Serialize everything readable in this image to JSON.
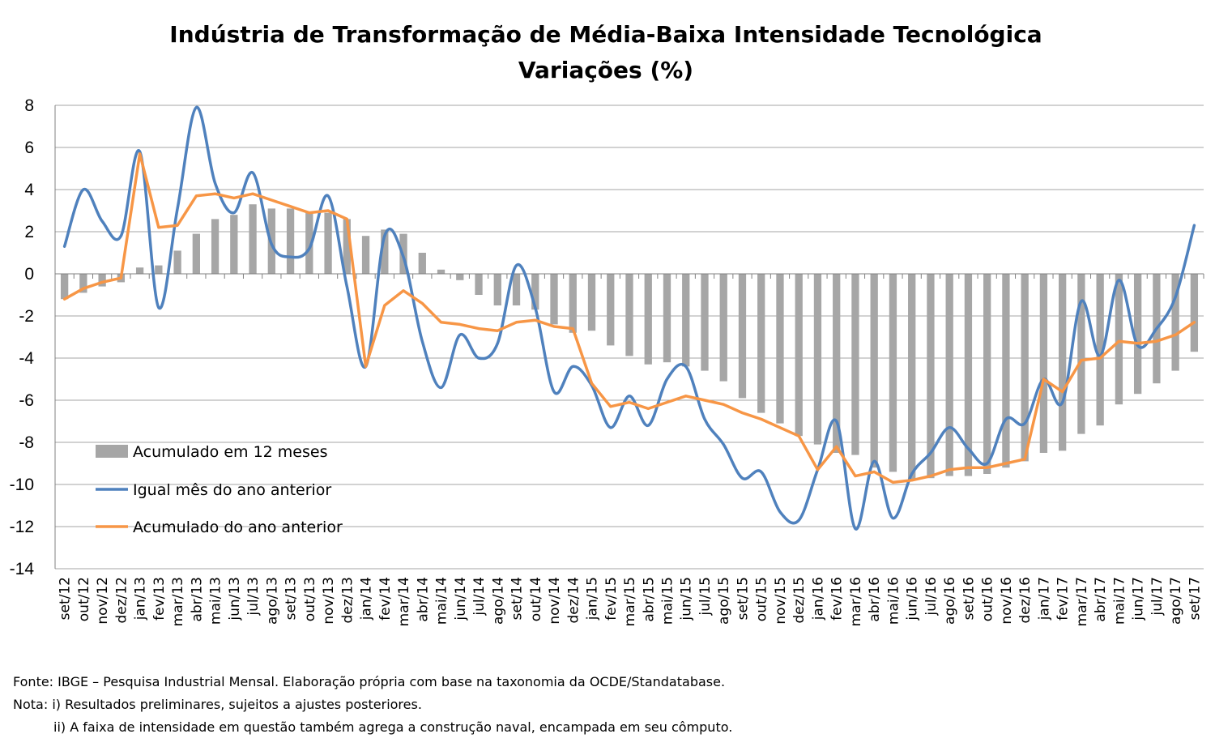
{
  "chart_data": {
    "type": "bar+line",
    "title": "Indústria de Transformação de Média-Baixa Intensidade Tecnológica",
    "subtitle": "Variações (%)",
    "xlabel": "",
    "ylabel": "",
    "ylim": [
      -14,
      8
    ],
    "yticks": [
      8,
      6,
      4,
      2,
      0,
      -2,
      -4,
      -6,
      -8,
      -10,
      -12,
      -14
    ],
    "grid": true,
    "legend_position": "bottom-left",
    "categories": [
      "set/12",
      "out/12",
      "nov/12",
      "dez/12",
      "jan/13",
      "fev/13",
      "mar/13",
      "abr/13",
      "mai/13",
      "jun/13",
      "jul/13",
      "ago/13",
      "set/13",
      "out/13",
      "nov/13",
      "dez/13",
      "jan/14",
      "fev/14",
      "mar/14",
      "abr/14",
      "mai/14",
      "jun/14",
      "jul/14",
      "ago/14",
      "set/14",
      "out/14",
      "nov/14",
      "dez/14",
      "jan/15",
      "fev/15",
      "mar/15",
      "abr/15",
      "mai/15",
      "jun/15",
      "jul/15",
      "ago/15",
      "set/15",
      "out/15",
      "nov/15",
      "dez/15",
      "jan/16",
      "fev/16",
      "mar/16",
      "abr/16",
      "mai/16",
      "jun/16",
      "jul/16",
      "ago/16",
      "set/16",
      "out/16",
      "nov/16",
      "dez/16",
      "jan/17",
      "fev/17",
      "mar/17",
      "abr/17",
      "mai/17",
      "jun/17",
      "jul/17",
      "ago/17",
      "set/17"
    ],
    "series": [
      {
        "name": "Acumulado em 12 meses",
        "type": "bar",
        "color": "#a6a6a6",
        "values": [
          -1.2,
          -0.9,
          -0.6,
          -0.4,
          0.3,
          0.4,
          1.1,
          1.9,
          2.6,
          2.8,
          3.3,
          3.1,
          3.1,
          2.9,
          2.9,
          2.6,
          1.8,
          2.1,
          1.9,
          1.0,
          0.2,
          -0.3,
          -1.0,
          -1.5,
          -1.5,
          -1.7,
          -2.4,
          -2.8,
          -2.7,
          -3.4,
          -3.9,
          -4.3,
          -4.2,
          -4.4,
          -4.6,
          -5.1,
          -5.9,
          -6.6,
          -7.1,
          -7.7,
          -8.1,
          -8.5,
          -8.6,
          -9.2,
          -9.4,
          -9.8,
          -9.7,
          -9.6,
          -9.6,
          -9.5,
          -9.2,
          -8.9,
          -8.5,
          -8.4,
          -7.6,
          -7.2,
          -6.2,
          -5.7,
          -5.2,
          -4.6,
          -3.7
        ]
      },
      {
        "name": "Igual mês do ano anterior",
        "type": "line",
        "color": "#4f81bd",
        "values": [
          1.3,
          4.0,
          2.5,
          1.8,
          5.8,
          -1.6,
          3.1,
          7.9,
          4.3,
          2.9,
          4.8,
          1.4,
          0.8,
          1.2,
          3.7,
          -0.6,
          -4.4,
          1.8,
          0.8,
          -3.2,
          -5.4,
          -2.9,
          -4.0,
          -3.3,
          0.4,
          -1.6,
          -5.6,
          -4.4,
          -5.3,
          -7.3,
          -5.8,
          -7.2,
          -5.0,
          -4.4,
          -6.9,
          -8.1,
          -9.7,
          -9.4,
          -11.3,
          -11.7,
          -9.3,
          -7.0,
          -12.1,
          -8.9,
          -11.6,
          -9.5,
          -8.5,
          -7.3,
          -8.3,
          -9.0,
          -6.9,
          -7.1,
          -5.0,
          -6.1,
          -1.3,
          -3.9,
          -0.3,
          -3.4,
          -2.6,
          -1.1,
          2.3
        ]
      },
      {
        "name": "Acumulado do ano anterior",
        "type": "line",
        "color": "#f79646",
        "values": [
          -1.2,
          -0.7,
          -0.4,
          -0.2,
          5.7,
          2.2,
          2.3,
          3.7,
          3.8,
          3.6,
          3.8,
          3.5,
          3.2,
          2.9,
          3.0,
          2.6,
          -4.4,
          -1.5,
          -0.8,
          -1.4,
          -2.3,
          -2.4,
          -2.6,
          -2.7,
          -2.3,
          -2.2,
          -2.5,
          -2.6,
          -5.2,
          -6.3,
          -6.1,
          -6.4,
          -6.1,
          -5.8,
          -6.0,
          -6.2,
          -6.6,
          -6.9,
          -7.3,
          -7.7,
          -9.3,
          -8.2,
          -9.6,
          -9.4,
          -9.9,
          -9.8,
          -9.6,
          -9.3,
          -9.2,
          -9.2,
          -9.0,
          -8.8,
          -5.0,
          -5.6,
          -4.1,
          -4.0,
          -3.2,
          -3.3,
          -3.2,
          -2.9,
          -2.3
        ]
      }
    ]
  },
  "notes": {
    "source": "Fonte: IBGE – Pesquisa Industrial Mensal. Elaboração própria com base na taxonomia da OCDE/Standatabase.",
    "note1": "Nota: i) Resultados preliminares, sujeitos a ajustes posteriores.",
    "note2": "ii) A faixa de intensidade em questão também agrega a construção naval, encampada em seu cômputo."
  }
}
